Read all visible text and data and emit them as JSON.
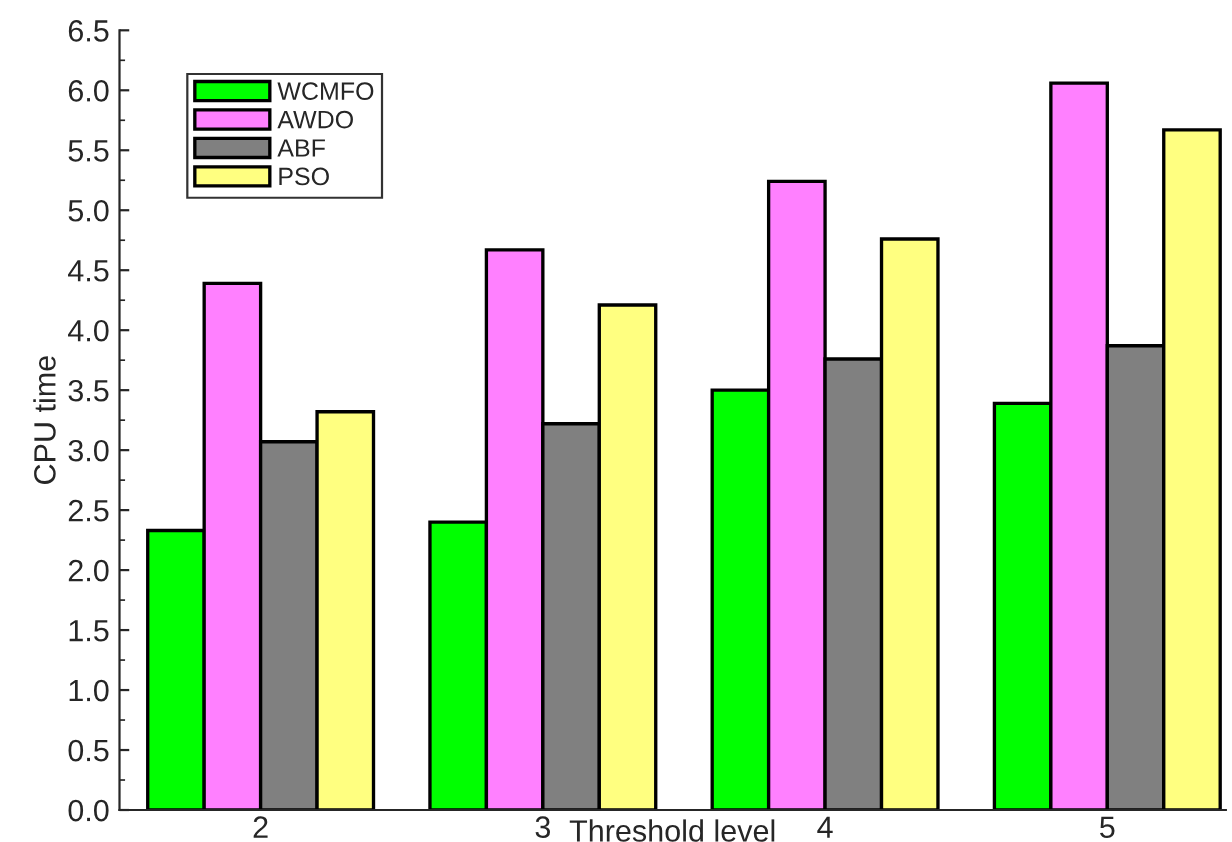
{
  "chart_data": {
    "type": "bar",
    "xlabel": "Threshold level",
    "ylabel": "CPU time",
    "categories": [
      "2",
      "3",
      "4",
      "5"
    ],
    "series": [
      {
        "name": "WCMFO",
        "color": "#00ff00",
        "values": [
          2.33,
          2.4,
          3.5,
          3.39
        ]
      },
      {
        "name": "AWDO",
        "color": "#ff80ff",
        "values": [
          4.39,
          4.67,
          5.24,
          6.06
        ]
      },
      {
        "name": "ABF",
        "color": "#808080",
        "values": [
          3.07,
          3.22,
          3.76,
          3.87
        ]
      },
      {
        "name": "PSO",
        "color": "#ffff80",
        "values": [
          3.32,
          4.21,
          4.76,
          5.67
        ]
      }
    ],
    "ylim": [
      0,
      6.5
    ],
    "yticks": [
      {
        "value": 0,
        "label": "0.0"
      },
      {
        "value": 0.5,
        "label": "0.5"
      },
      {
        "value": 1,
        "label": "1.0"
      },
      {
        "value": 1.5,
        "label": "1.5"
      },
      {
        "value": 2,
        "label": "2.0"
      },
      {
        "value": 2.5,
        "label": "2.5"
      },
      {
        "value": 3,
        "label": "3.0"
      },
      {
        "value": 3.5,
        "label": "3.5"
      },
      {
        "value": 4,
        "label": "4.0"
      },
      {
        "value": 4.5,
        "label": "4.5"
      },
      {
        "value": 5,
        "label": "5.0"
      },
      {
        "value": 5.5,
        "label": "5.5"
      },
      {
        "value": 6,
        "label": "6.0"
      },
      {
        "value": 6.5,
        "label": "6.5"
      }
    ],
    "grid": false,
    "legend": "top left"
  }
}
